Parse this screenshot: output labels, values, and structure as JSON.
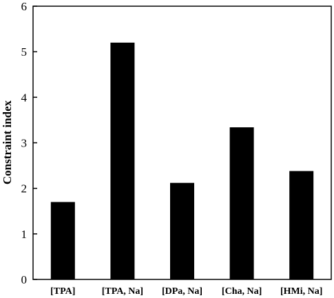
{
  "chart_data": {
    "type": "bar",
    "title": "",
    "xlabel": "",
    "ylabel": "Constraint index",
    "categories": [
      "[TPA]",
      "[TPA, Na]",
      "[DPa, Na]",
      "[Cha, Na]",
      "[HMi, Na]"
    ],
    "values": [
      1.7,
      5.2,
      2.12,
      3.34,
      2.38
    ],
    "ylim": [
      0,
      6
    ],
    "yticks": [
      0,
      1,
      2,
      3,
      4,
      5,
      6
    ],
    "grid": false,
    "legend": "none",
    "colors": {
      "bar": "#000000",
      "axis": "#000000",
      "background": "#ffffff"
    }
  }
}
